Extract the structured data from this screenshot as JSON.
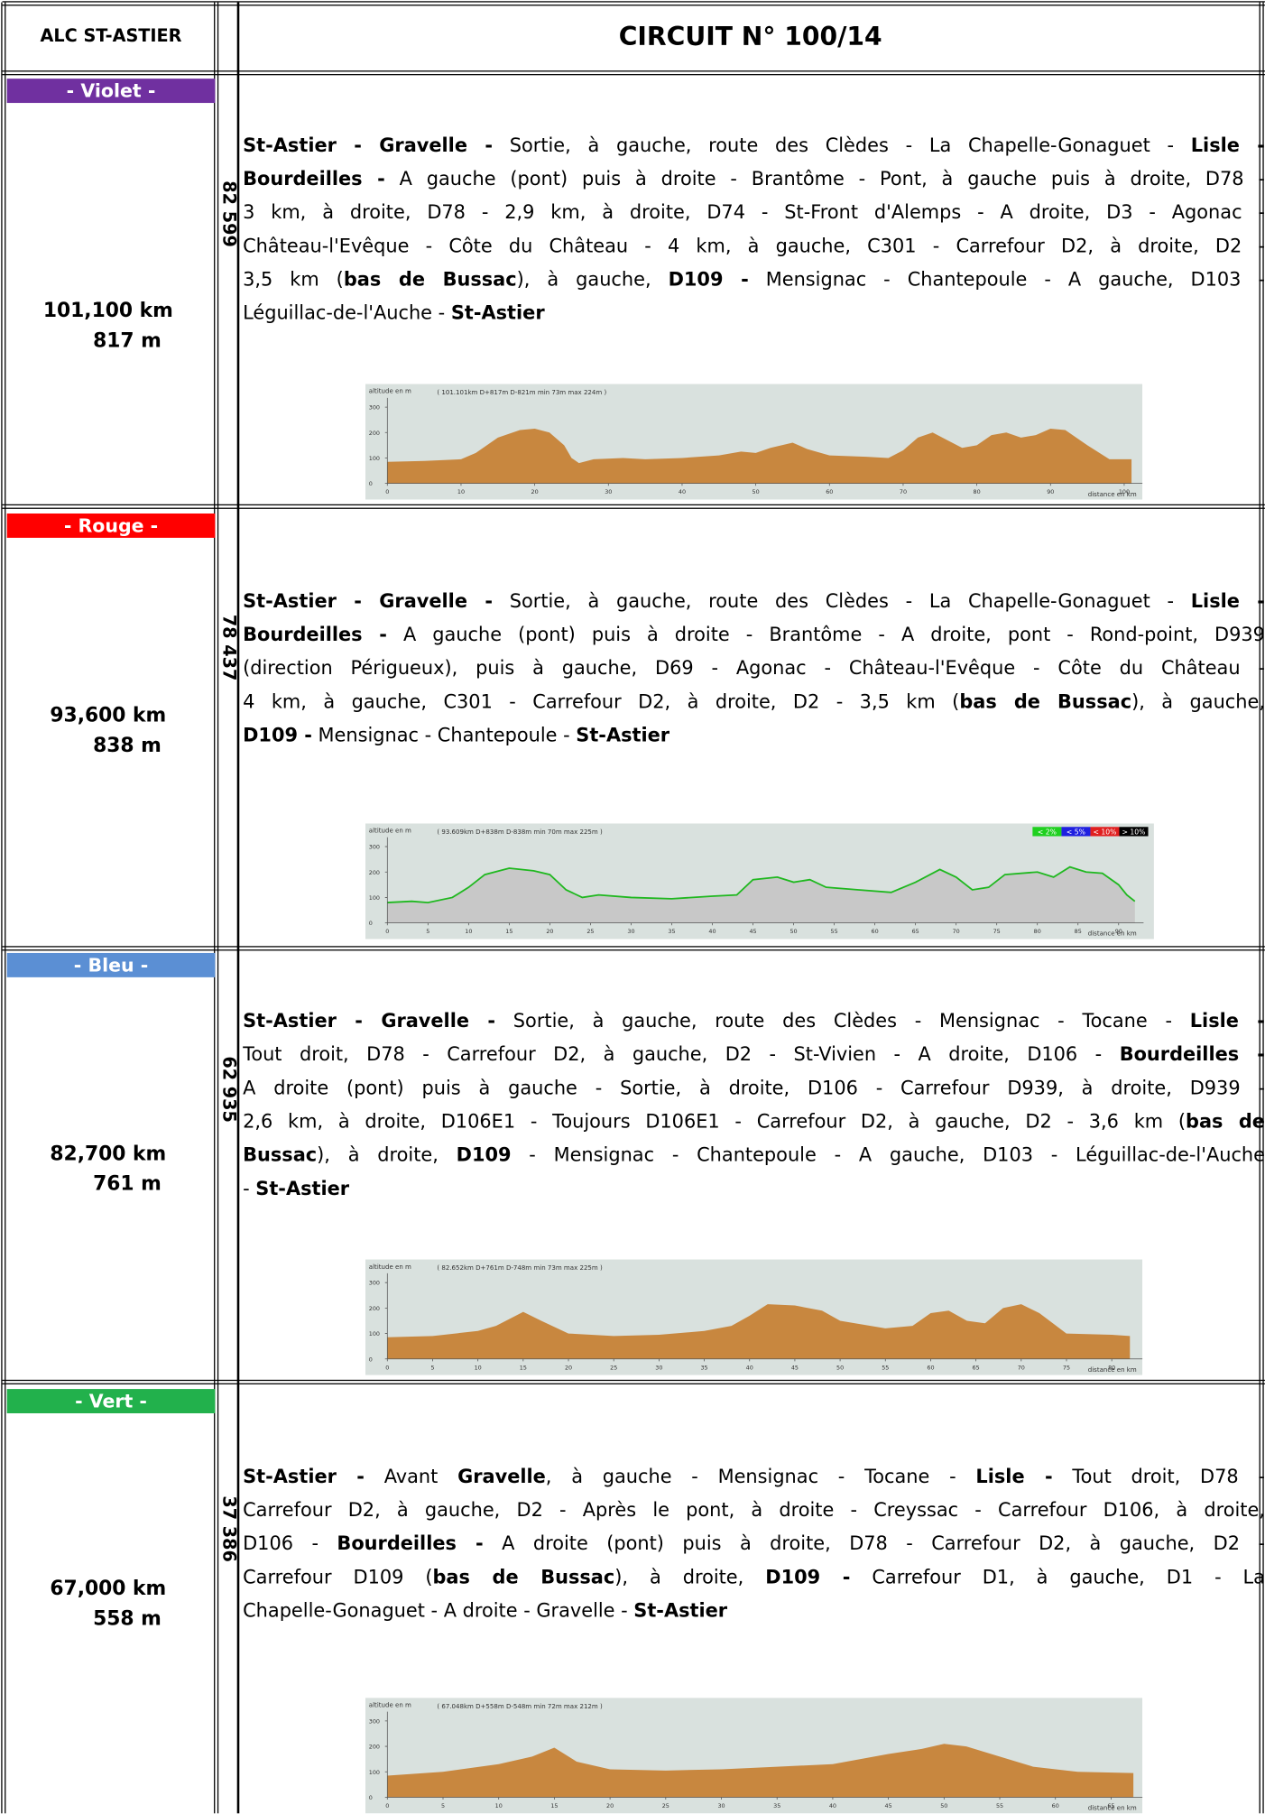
{
  "header": {
    "club": "ALC ST-ASTIER",
    "circuit": "CIRCUIT N° 100/14"
  },
  "sections": [
    {
      "label": "- Violet -",
      "color": "#7030a0",
      "distance": "101,100 km",
      "elevation": "817 m",
      "code": "82 599",
      "lines": [
        [
          {
            "text": "St-Astier - Gravelle -",
            "bold": true
          },
          {
            "text": " Sortie, à gauche, route des Clèdes - La Chapelle-Gonaguet - "
          },
          {
            "text": "Lisle -",
            "bold": true
          }
        ],
        [
          {
            "text": "Bourdeilles -",
            "bold": true
          },
          {
            "text": " A gauche (pont) puis à droite - Brantôme - Pont, à gauche puis à droite, D78 -"
          }
        ],
        [
          {
            "text": "3 km, à droite, D78 - 2,9 km, à droite, D74 - St-Front d'Alemps - A droite, D3 - Agonac -"
          }
        ],
        [
          {
            "text": "Château-l'Evêque - Côte du Château - 4 km, à gauche, C301 - Carrefour D2, à droite, D2 -"
          }
        ],
        [
          {
            "text": "3,5 km ("
          },
          {
            "text": "bas de Bussac",
            "bold": true
          },
          {
            "text": "), à gauche, "
          },
          {
            "text": "D109 -",
            "bold": true
          },
          {
            "text": " Mensignac - Chantepoule - A gauche, D103 -"
          }
        ],
        [
          {
            "text": "Léguillac-de-l'Auche - "
          },
          {
            "text": "St-Astier",
            "bold": true
          }
        ]
      ],
      "profile": {
        "type": "area",
        "y_label": "altitude en m",
        "summary": "( 101.101km D+817m D-821m min 73m max 224m )",
        "x_label": "distance en km",
        "xlim": [
          0,
          102
        ],
        "ylim": [
          0,
          330
        ],
        "xticks": [
          0,
          10,
          20,
          30,
          40,
          50,
          60,
          70,
          80,
          90,
          100
        ],
        "yticks": [
          0,
          100,
          200,
          300
        ],
        "color": "#c8873f",
        "x": [
          0,
          5,
          10,
          12,
          15,
          18,
          20,
          22,
          24,
          25,
          26,
          28,
          32,
          35,
          40,
          45,
          48,
          50,
          52,
          55,
          57,
          60,
          65,
          68,
          70,
          72,
          74,
          76,
          78,
          80,
          82,
          84,
          86,
          88,
          90,
          92,
          95,
          98,
          101
        ],
        "values": [
          85,
          88,
          95,
          120,
          180,
          210,
          215,
          200,
          150,
          100,
          80,
          95,
          100,
          95,
          100,
          110,
          125,
          120,
          140,
          160,
          135,
          110,
          105,
          100,
          130,
          180,
          200,
          170,
          140,
          150,
          190,
          200,
          180,
          190,
          215,
          210,
          150,
          95,
          95
        ]
      }
    },
    {
      "label": "- Rouge -",
      "color": "#ff0000",
      "distance": "93,600 km",
      "elevation": "838 m",
      "code": "78 437",
      "lines": [
        [
          {
            "text": "St-Astier - Gravelle -",
            "bold": true
          },
          {
            "text": " Sortie, à gauche, route des Clèdes - La Chapelle-Gonaguet - "
          },
          {
            "text": "Lisle -",
            "bold": true
          }
        ],
        [
          {
            "text": "Bourdeilles -",
            "bold": true
          },
          {
            "text": " A gauche (pont) puis à droite - Brantôme - A droite, pont - Rond-point, D939"
          }
        ],
        [
          {
            "text": "(direction Périgueux), puis à gauche, D69 - Agonac - Château-l'Evêque - Côte du Château -"
          }
        ],
        [
          {
            "text": "4 km, à gauche, C301 - Carrefour D2, à droite, D2 - 3,5 km ("
          },
          {
            "text": "bas de Bussac",
            "bold": true
          },
          {
            "text": "), à gauche,"
          }
        ],
        [
          {
            "text": "D109 -",
            "bold": true
          },
          {
            "text": " Mensignac - Chantepoule - "
          },
          {
            "text": "St-Astier",
            "bold": true
          }
        ]
      ],
      "profile": {
        "type": "line",
        "y_label": "altitude en m",
        "summary": "( 93.609km D+838m D-838m min 70m max 225m )",
        "x_label": "distance en km",
        "xlim": [
          0,
          92.5
        ],
        "ylim": [
          0,
          330
        ],
        "xticks": [
          0,
          5,
          10,
          15,
          20,
          25,
          30,
          35,
          40,
          45,
          50,
          55,
          60,
          65,
          70,
          75,
          80,
          85,
          90
        ],
        "yticks": [
          0,
          100,
          200,
          300
        ],
        "color": "#c8c8c8",
        "line_color": "#1fb81f",
        "legend": [
          {
            "name": "< 2%",
            "color": "#1fd01f"
          },
          {
            "name": "< 5%",
            "color": "#1f1fe0"
          },
          {
            "name": "< 10%",
            "color": "#e01f1f"
          },
          {
            "name": "> 10%",
            "color": "#000000"
          }
        ],
        "x": [
          0,
          3,
          5,
          8,
          10,
          12,
          15,
          18,
          20,
          22,
          24,
          26,
          30,
          35,
          40,
          43,
          45,
          48,
          50,
          52,
          54,
          58,
          62,
          65,
          68,
          70,
          72,
          74,
          76,
          80,
          82,
          84,
          86,
          88,
          90,
          91,
          92
        ],
        "values": [
          80,
          85,
          80,
          100,
          140,
          190,
          215,
          205,
          190,
          130,
          100,
          110,
          100,
          95,
          105,
          110,
          170,
          180,
          160,
          170,
          140,
          130,
          120,
          160,
          210,
          180,
          130,
          140,
          190,
          200,
          180,
          220,
          200,
          195,
          150,
          110,
          85
        ]
      }
    },
    {
      "label": "- Bleu -",
      "color": "#5b8fd4",
      "distance": "82,700 km",
      "elevation": "761 m",
      "code": "62 935",
      "lines": [
        [
          {
            "text": "St-Astier - Gravelle -",
            "bold": true
          },
          {
            "text": " Sortie, à gauche, route des Clèdes - Mensignac - Tocane - "
          },
          {
            "text": "Lisle -",
            "bold": true
          }
        ],
        [
          {
            "text": "Tout droit, D78 - Carrefour D2, à gauche, D2 - St-Vivien - A droite, D106 - "
          },
          {
            "text": "Bourdeilles -",
            "bold": true
          }
        ],
        [
          {
            "text": "A droite (pont) puis à gauche - Sortie, à droite, D106 - Carrefour D939, à droite, D939 -"
          }
        ],
        [
          {
            "text": "2,6 km, à droite, D106E1 - Toujours D106E1 - Carrefour D2, à gauche, D2 - 3,6 km ("
          },
          {
            "text": "bas de",
            "bold": true
          }
        ],
        [
          {
            "text": "Bussac",
            "bold": true
          },
          {
            "text": "), à droite, "
          },
          {
            "text": "D109",
            "bold": true
          },
          {
            "text": " - Mensignac - Chantepoule - A gauche, D103 - Léguillac-de-l'Auche"
          }
        ],
        [
          {
            "text": "- "
          },
          {
            "text": "St-Astier",
            "bold": true
          }
        ]
      ],
      "profile": {
        "type": "area",
        "y_label": "altitude en m",
        "summary": "( 82.652km D+761m D-748m min 73m max 225m )",
        "x_label": "distance en km",
        "xlim": [
          0,
          83
        ],
        "ylim": [
          0,
          330
        ],
        "xticks": [
          0,
          5,
          10,
          15,
          20,
          25,
          30,
          35,
          40,
          45,
          50,
          55,
          60,
          65,
          70,
          75,
          80
        ],
        "yticks": [
          0,
          100,
          200,
          300
        ],
        "color": "#c8873f",
        "x": [
          0,
          5,
          10,
          12,
          15,
          17,
          20,
          25,
          30,
          35,
          38,
          40,
          42,
          45,
          48,
          50,
          55,
          58,
          60,
          62,
          64,
          66,
          68,
          70,
          72,
          75,
          80,
          82
        ],
        "values": [
          85,
          90,
          110,
          130,
          185,
          150,
          100,
          90,
          95,
          110,
          130,
          170,
          215,
          210,
          190,
          150,
          120,
          130,
          180,
          190,
          150,
          140,
          200,
          215,
          180,
          100,
          95,
          90
        ]
      }
    },
    {
      "label": "- Vert -",
      "color": "#22b14c",
      "distance": "67,000 km",
      "elevation": "558 m",
      "code": "37 386",
      "lines": [
        [
          {
            "text": "St-Astier -",
            "bold": true
          },
          {
            "text": " Avant "
          },
          {
            "text": "Gravelle",
            "bold": true
          },
          {
            "text": ", à gauche - Mensignac - Tocane - "
          },
          {
            "text": "Lisle -",
            "bold": true
          },
          {
            "text": " Tout droit, D78 -"
          }
        ],
        [
          {
            "text": "Carrefour D2, à gauche, D2 - Après le pont, à droite - Creyssac - Carrefour D106, à droite,"
          }
        ],
        [
          {
            "text": "D106 - "
          },
          {
            "text": "Bourdeilles -",
            "bold": true
          },
          {
            "text": " A droite (pont) puis à droite, D78 - Carrefour D2, à gauche, D2 -"
          }
        ],
        [
          {
            "text": "Carrefour D109 ("
          },
          {
            "text": "bas de Bussac",
            "bold": true
          },
          {
            "text": "), à droite, "
          },
          {
            "text": "D109 -",
            "bold": true
          },
          {
            "text": " Carrefour D1, à gauche, D1 - La"
          }
        ],
        [
          {
            "text": "Chapelle-Gonaguet - A droite - Gravelle - "
          },
          {
            "text": "St-Astier",
            "bold": true
          }
        ]
      ],
      "profile": {
        "type": "area",
        "y_label": "altitude en m",
        "summary": "( 67.048km D+558m D-548m min 72m max 212m )",
        "x_label": "distance en km",
        "xlim": [
          0,
          67.5
        ],
        "ylim": [
          0,
          330
        ],
        "xticks": [
          0,
          5,
          10,
          15,
          20,
          25,
          30,
          35,
          40,
          45,
          50,
          55,
          60,
          65
        ],
        "yticks": [
          0,
          100,
          200,
          300
        ],
        "color": "#c8873f",
        "x": [
          0,
          5,
          10,
          13,
          15,
          17,
          20,
          25,
          30,
          35,
          40,
          45,
          48,
          50,
          52,
          55,
          58,
          62,
          67
        ],
        "values": [
          85,
          100,
          130,
          160,
          195,
          140,
          110,
          105,
          110,
          120,
          130,
          170,
          190,
          210,
          200,
          160,
          120,
          100,
          95
        ]
      }
    }
  ]
}
